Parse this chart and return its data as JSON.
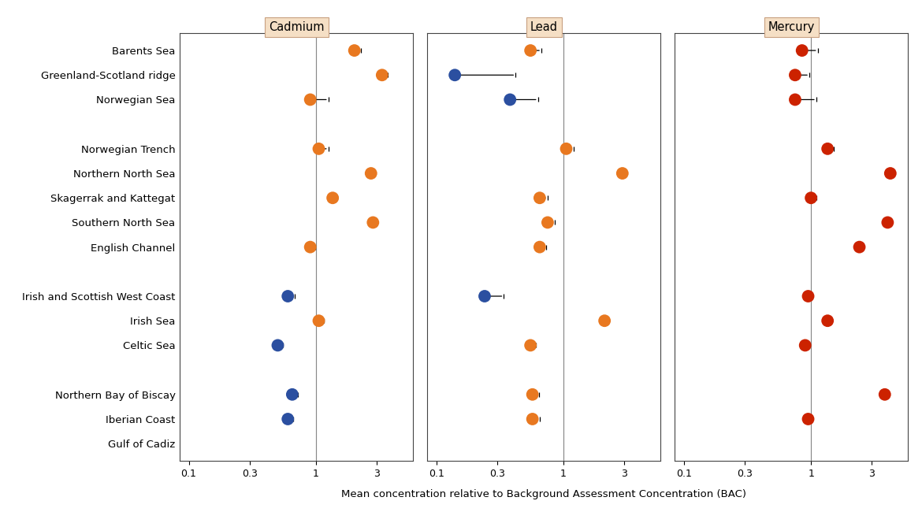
{
  "regions": [
    "Barents Sea",
    "Greenland-Scotland ridge",
    "Norwegian Sea",
    "",
    "Norwegian Trench",
    "Northern North Sea",
    "Skagerrak and Kattegat",
    "Southern North Sea",
    "English Channel",
    "",
    "Irish and Scottish West Coast",
    "Irish Sea",
    "Celtic Sea",
    "",
    "Northern Bay of Biscay",
    "Iberian Coast",
    "Gulf of Cadiz"
  ],
  "cadmium": {
    "values": [
      2.0,
      3.3,
      0.9,
      null,
      1.05,
      2.7,
      1.35,
      2.8,
      0.9,
      null,
      0.6,
      1.05,
      0.5,
      null,
      0.65,
      0.6,
      null
    ],
    "xerr": [
      0.25,
      0.35,
      0.35,
      null,
      0.2,
      0.18,
      0.12,
      0.15,
      0.08,
      null,
      0.08,
      0.1,
      0.05,
      null,
      0.07,
      0.06,
      null
    ],
    "colors": [
      "orange",
      "orange",
      "orange",
      null,
      "orange",
      "orange",
      "orange",
      "orange",
      "orange",
      null,
      "blue",
      "orange",
      "blue",
      null,
      "blue",
      "blue",
      null
    ]
  },
  "lead": {
    "values": [
      0.55,
      0.14,
      0.38,
      null,
      1.05,
      2.9,
      0.65,
      0.75,
      0.65,
      null,
      0.24,
      2.1,
      0.55,
      null,
      0.57,
      0.57,
      null
    ],
    "xerr": [
      0.12,
      0.28,
      0.25,
      null,
      0.15,
      0.2,
      0.1,
      0.1,
      0.08,
      null,
      0.1,
      0.1,
      0.06,
      null,
      0.07,
      0.08,
      null
    ],
    "colors": [
      "orange",
      "blue",
      "blue",
      null,
      "orange",
      "orange",
      "orange",
      "orange",
      "orange",
      null,
      "blue",
      "orange",
      "orange",
      null,
      "orange",
      "orange",
      null
    ]
  },
  "mercury": {
    "values": [
      0.85,
      0.75,
      0.75,
      null,
      1.35,
      4.2,
      1.0,
      4.0,
      2.4,
      null,
      0.95,
      1.35,
      0.9,
      null,
      3.8,
      0.95,
      null
    ],
    "xerr": [
      0.28,
      0.22,
      0.35,
      null,
      0.15,
      0.18,
      0.1,
      0.15,
      0.1,
      null,
      0.07,
      0.1,
      0.07,
      null,
      0.15,
      0.07,
      null
    ],
    "colors": [
      "red",
      "red",
      "red",
      null,
      "red",
      "red",
      "red",
      "red",
      "red",
      null,
      "red",
      "red",
      "red",
      null,
      "red",
      "red",
      null
    ]
  },
  "panel_titles": [
    "Cadmium",
    "Lead",
    "Mercury"
  ],
  "xlabel": "Mean concentration relative to Background Assessment Concentration (BAC)",
  "header_facecolor": "#f5dfc5",
  "header_edgecolor": "#c8a080",
  "dot_size": 130,
  "orange_color": "#E87820",
  "blue_color": "#2B4FA0",
  "red_color": "#CC2200",
  "gray_line_color": "#888888",
  "spine_color": "#444444"
}
